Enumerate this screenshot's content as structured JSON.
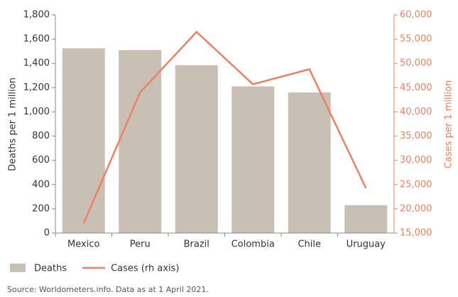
{
  "chart_data": {
    "type": "bar",
    "categories": [
      "Mexico",
      "Peru",
      "Brazil",
      "Colombia",
      "Chile",
      "Uruguay"
    ],
    "series": [
      {
        "name": "Deaths",
        "type": "bar",
        "color": "#c9c0b5",
        "values": [
          1525,
          1510,
          1385,
          1210,
          1160,
          230
        ]
      },
      {
        "name": "Cases (rh axis)",
        "type": "line",
        "axis": "y2",
        "color": "#f08060",
        "values": [
          17000,
          44000,
          56500,
          45700,
          48800,
          24300
        ]
      }
    ],
    "ylabel": "Deaths per 1 million",
    "y2label": "Cases per 1 million",
    "ylim": [
      0,
      1800
    ],
    "yticks": [
      0,
      200,
      400,
      600,
      800,
      {
        "value": 1000,
        "label": "1,000"
      },
      {
        "value": 1200,
        "label": "1,200"
      },
      {
        "value": 1400,
        "label": "1,400"
      },
      {
        "value": 1600,
        "label": "1,600"
      },
      {
        "value": 1800,
        "label": "1,800"
      }
    ],
    "y2lim": [
      15000,
      60000
    ],
    "y2ticks": [
      {
        "value": 15000,
        "label": "15,000"
      },
      {
        "value": 20000,
        "label": "20,000"
      },
      {
        "value": 25000,
        "label": "25,000"
      },
      {
        "value": 30000,
        "label": "30,000"
      },
      {
        "value": 35000,
        "label": "35,000"
      },
      {
        "value": 40000,
        "label": "40,000"
      },
      {
        "value": 45000,
        "label": "45,000"
      },
      {
        "value": 50000,
        "label": "50,000"
      },
      {
        "value": 55000,
        "label": "55,000"
      },
      {
        "value": 60000,
        "label": "60,000"
      }
    ],
    "source": "Source: Worldometers.info. Data as at 1 April 2021."
  }
}
